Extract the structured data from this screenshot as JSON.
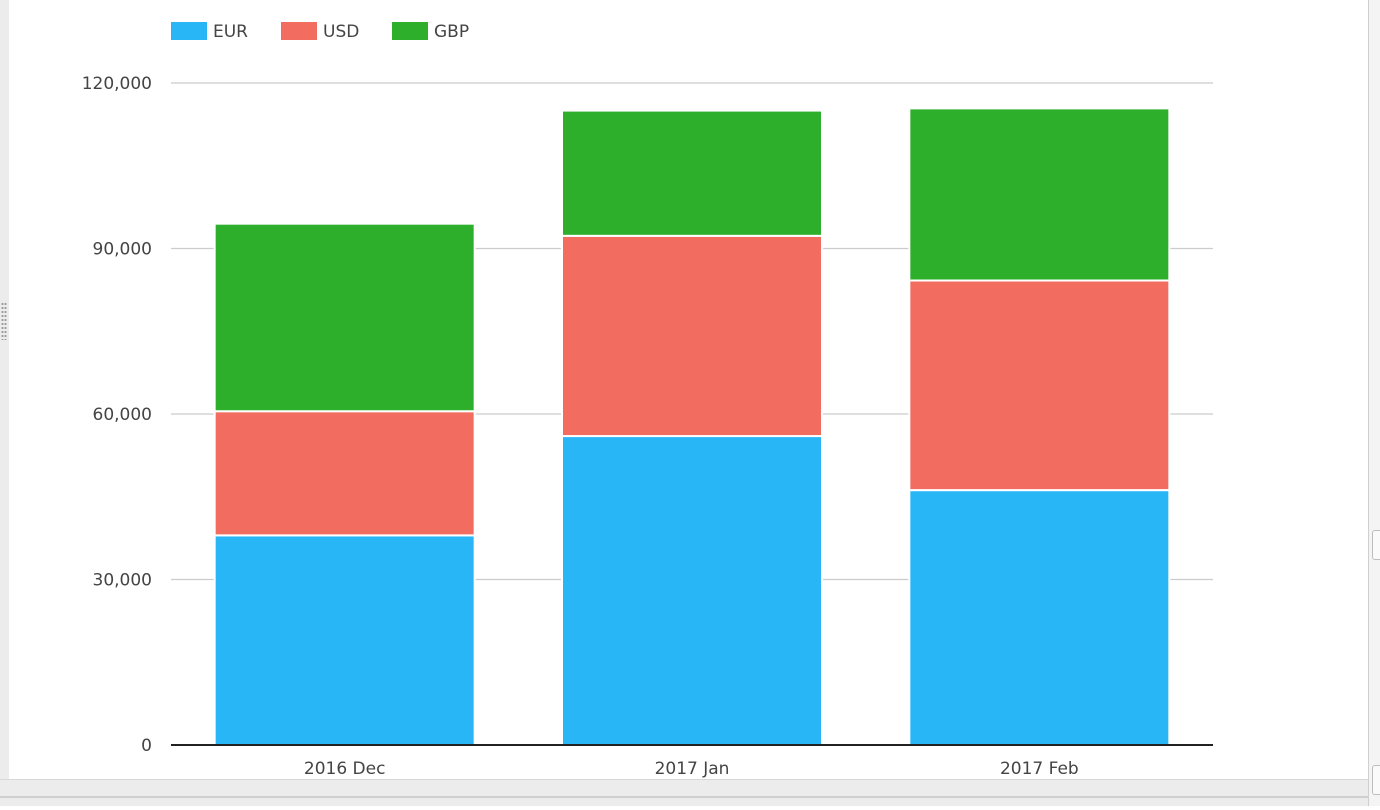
{
  "chart_data": {
    "type": "bar",
    "stacked": true,
    "categories": [
      "2016 Dec",
      "2017 Jan",
      "2017 Feb"
    ],
    "series": [
      {
        "name": "EUR",
        "color": "#29b6f6",
        "values": [
          38000,
          56000,
          46200
        ]
      },
      {
        "name": "USD",
        "color": "#f26d60",
        "values": [
          22500,
          36300,
          38000
        ]
      },
      {
        "name": "GBP",
        "color": "#2eaf2b",
        "values": [
          34000,
          22700,
          31200
        ]
      }
    ],
    "yticks": [
      "0",
      "30,000",
      "60,000",
      "90,000",
      "120,000"
    ],
    "ylim": [
      0,
      120000
    ],
    "grid": true,
    "legend_position": "top-left",
    "title": "",
    "xlabel": "",
    "ylabel": ""
  }
}
